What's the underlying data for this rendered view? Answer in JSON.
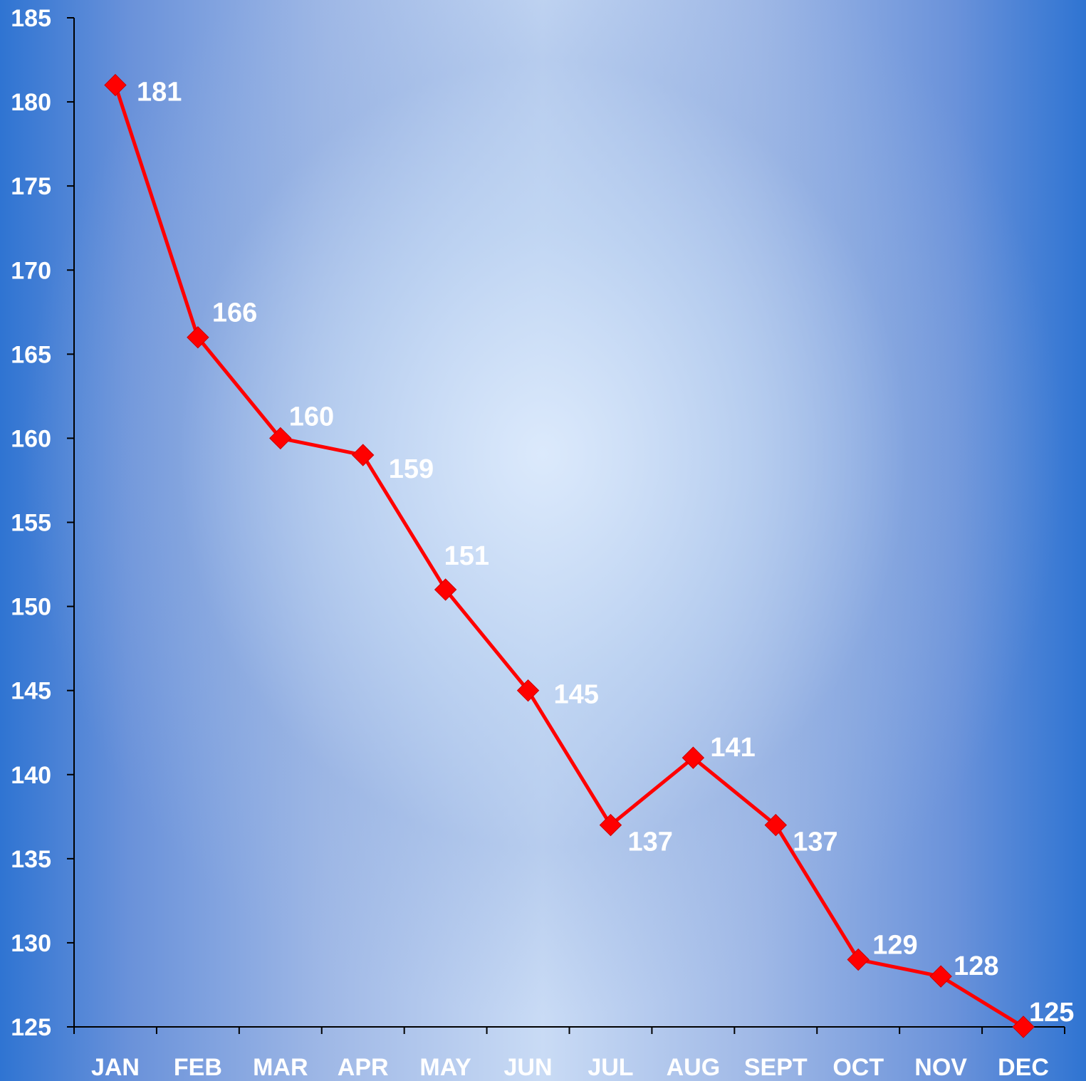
{
  "chart_data": {
    "type": "line",
    "categories": [
      "JAN",
      "FEB",
      "MAR",
      "APR",
      "MAY",
      "JUN",
      "JUL",
      "AUG",
      "SEPT",
      "OCT",
      "NOV",
      "DEC"
    ],
    "series": [
      {
        "values": [
          181,
          166,
          160,
          159,
          151,
          145,
          137,
          141,
          137,
          129,
          128,
          125
        ]
      }
    ],
    "data_labels": [
      "181",
      "166",
      "160",
      "159",
      "151",
      "145",
      "137",
      "141",
      "137",
      "129",
      "128",
      "125"
    ],
    "y_ticks": [
      125,
      130,
      135,
      140,
      145,
      150,
      155,
      160,
      165,
      170,
      175,
      180,
      185
    ],
    "ylim": [
      125,
      185
    ],
    "title": "",
    "xlabel": "",
    "ylabel": "",
    "grid": false,
    "legend": "none",
    "marker": "diamond",
    "colors": {
      "line": "#ff0000",
      "marker": "#ff0000",
      "axis": "#000000",
      "text": "#ffffff"
    }
  }
}
